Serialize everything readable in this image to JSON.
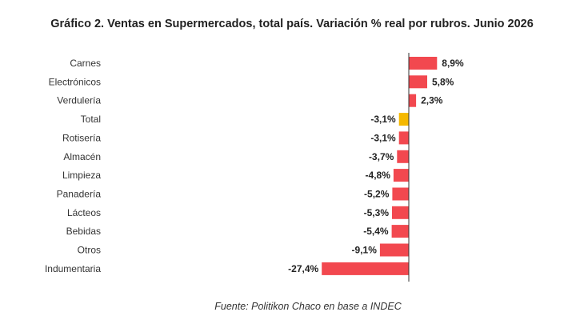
{
  "chart_data": {
    "type": "bar",
    "orientation": "horizontal",
    "title": "Gráfico 2. Ventas en Supermercados, total país. Variación % real por rubros. Junio 2026",
    "source": "Fuente: Politikon Chaco en base a INDEC",
    "categories": [
      "Carnes",
      "Electrónicos",
      "Verdulería",
      "Total",
      "Rotisería",
      "Almacén",
      "Limpieza",
      "Panadería",
      "Lácteos",
      "Bebidas",
      "Otros",
      "Indumentaria"
    ],
    "values": [
      8.9,
      5.8,
      2.3,
      -3.1,
      -3.1,
      -3.7,
      -4.8,
      -5.2,
      -5.3,
      -5.4,
      -9.1,
      -27.4
    ],
    "value_labels": [
      "8,9%",
      "5,8%",
      "2,3%",
      "-3,1%",
      "-3,1%",
      "-3,7%",
      "-4,8%",
      "-5,2%",
      "-5,3%",
      "-5,4%",
      "-9,1%",
      "-27,4%"
    ],
    "highlight_category": "Total",
    "xlim": [
      -27.4,
      8.9
    ],
    "grid": false,
    "legend": "none",
    "colors": {
      "bar": "#f2484f",
      "highlight": "#f5b800",
      "axis": "#333333"
    }
  }
}
